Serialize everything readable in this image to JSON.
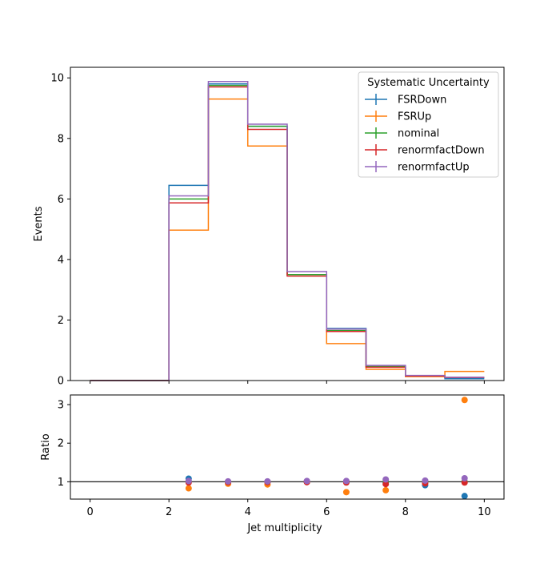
{
  "chart_data": [
    {
      "type": "line",
      "subtype": "step-histogram",
      "ylabel": "Events",
      "xlim": [
        -0.5,
        10.5
      ],
      "ylim": [
        0,
        10.35
      ],
      "yticks": [
        "0",
        "2",
        "4",
        "6",
        "8",
        "10"
      ],
      "bin_edges": [
        0,
        1,
        2,
        3,
        4,
        5,
        6,
        7,
        8,
        9,
        10
      ],
      "legend_title": "Systematic Uncertainty",
      "legend_position": "top-right",
      "series": [
        {
          "name": "FSRDown",
          "color": "#1f77b4",
          "values": [
            0,
            0,
            6.45,
            9.8,
            8.4,
            3.5,
            1.72,
            0.45,
            0.15,
            0.06
          ]
        },
        {
          "name": "FSRUp",
          "color": "#ff7f0e",
          "values": [
            0,
            0,
            4.97,
            9.3,
            7.75,
            3.5,
            1.22,
            0.37,
            0.13,
            0.3
          ]
        },
        {
          "name": "nominal",
          "color": "#2ca02c",
          "values": [
            0,
            0,
            6.0,
            9.75,
            8.4,
            3.5,
            1.65,
            0.47,
            0.16,
            0.1
          ]
        },
        {
          "name": "renormfactDown",
          "color": "#d62728",
          "values": [
            0,
            0,
            5.87,
            9.7,
            8.3,
            3.45,
            1.62,
            0.44,
            0.15,
            0.1
          ]
        },
        {
          "name": "renormfactUp",
          "color": "#9467bd",
          "values": [
            0,
            0,
            6.1,
            9.88,
            8.47,
            3.6,
            1.7,
            0.5,
            0.17,
            0.11
          ]
        }
      ]
    },
    {
      "type": "scatter",
      "ylabel": "Ratio",
      "xlabel": "Jet multiplicity",
      "xlim": [
        -0.5,
        10.5
      ],
      "ylim": [
        0.55,
        3.25
      ],
      "xticks": [
        "0",
        "2",
        "4",
        "6",
        "8",
        "10"
      ],
      "yticks": [
        "1",
        "2",
        "3"
      ],
      "reference_line": 1,
      "x": [
        2.5,
        3.5,
        4.5,
        5.5,
        6.5,
        7.5,
        8.5,
        9.5
      ],
      "series": [
        {
          "name": "FSRDown",
          "color": "#1f77b4",
          "values": [
            1.08,
            1.0,
            1.0,
            1.0,
            1.0,
            0.97,
            0.91,
            0.63
          ]
        },
        {
          "name": "FSRUp",
          "color": "#ff7f0e",
          "values": [
            0.83,
            0.95,
            0.93,
            1.0,
            0.73,
            0.78,
            1.0,
            3.12
          ]
        },
        {
          "name": "nominal",
          "color": "#2ca02c",
          "values": [
            1.0,
            1.0,
            1.0,
            1.0,
            1.0,
            1.0,
            1.0,
            1.0
          ]
        },
        {
          "name": "renormfactDown",
          "color": "#d62728",
          "values": [
            0.98,
            0.99,
            0.99,
            0.99,
            0.98,
            0.94,
            0.96,
            0.98
          ]
        },
        {
          "name": "renormfactUp",
          "color": "#9467bd",
          "values": [
            1.02,
            1.01,
            1.01,
            1.02,
            1.02,
            1.06,
            1.03,
            1.09
          ]
        }
      ]
    }
  ]
}
